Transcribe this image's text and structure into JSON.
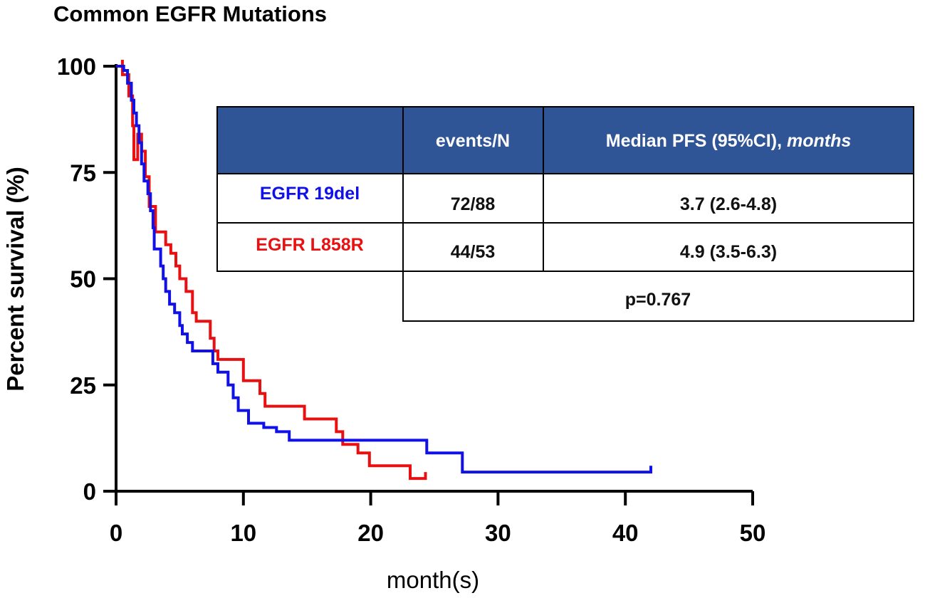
{
  "chart_data": {
    "type": "line",
    "title": "Common EGFR Mutations",
    "xlabel": "month(s)",
    "ylabel": "Percent survival (%)",
    "xlim": [
      0,
      50
    ],
    "ylim": [
      0,
      100
    ],
    "x_ticks": [
      "0",
      "10",
      "20",
      "30",
      "40",
      "50"
    ],
    "y_ticks": [
      "0",
      "25",
      "50",
      "75",
      "100"
    ],
    "series": [
      {
        "name": "EGFR 19del",
        "color": "#1010e8",
        "points": [
          [
            0,
            100
          ],
          [
            0.6,
            100
          ],
          [
            0.6,
            99
          ],
          [
            0.9,
            99
          ],
          [
            0.9,
            96
          ],
          [
            1.2,
            96
          ],
          [
            1.2,
            92
          ],
          [
            1.4,
            92
          ],
          [
            1.4,
            89
          ],
          [
            1.6,
            89
          ],
          [
            1.6,
            86
          ],
          [
            1.8,
            86
          ],
          [
            1.8,
            82
          ],
          [
            2.0,
            82
          ],
          [
            2.0,
            77
          ],
          [
            2.2,
            77
          ],
          [
            2.2,
            73
          ],
          [
            2.5,
            73
          ],
          [
            2.5,
            70
          ],
          [
            2.7,
            70
          ],
          [
            2.7,
            66
          ],
          [
            2.9,
            66
          ],
          [
            2.9,
            62
          ],
          [
            3.0,
            62
          ],
          [
            3.0,
            57
          ],
          [
            3.5,
            57
          ],
          [
            3.5,
            53
          ],
          [
            3.7,
            53
          ],
          [
            3.7,
            50
          ],
          [
            3.9,
            50
          ],
          [
            3.9,
            47
          ],
          [
            4.2,
            47
          ],
          [
            4.2,
            44
          ],
          [
            4.6,
            44
          ],
          [
            4.6,
            42
          ],
          [
            5.0,
            42
          ],
          [
            5.0,
            39
          ],
          [
            5.2,
            39
          ],
          [
            5.2,
            37
          ],
          [
            5.6,
            37
          ],
          [
            5.6,
            35
          ],
          [
            6.0,
            35
          ],
          [
            6.0,
            33
          ],
          [
            7.6,
            33
          ],
          [
            7.6,
            30
          ],
          [
            8.0,
            30
          ],
          [
            8.0,
            28
          ],
          [
            8.8,
            28
          ],
          [
            8.8,
            25
          ],
          [
            9.2,
            25
          ],
          [
            9.2,
            22
          ],
          [
            9.6,
            22
          ],
          [
            9.6,
            19
          ],
          [
            10.4,
            19
          ],
          [
            10.4,
            16
          ],
          [
            11.6,
            16
          ],
          [
            11.6,
            15
          ],
          [
            12.6,
            15
          ],
          [
            12.6,
            14
          ],
          [
            13.6,
            14
          ],
          [
            13.6,
            12
          ],
          [
            24.4,
            12
          ],
          [
            24.4,
            9
          ],
          [
            27.2,
            9
          ],
          [
            27.2,
            4.5
          ],
          [
            42.0,
            4.5
          ],
          [
            42.0,
            6
          ]
        ]
      },
      {
        "name": "EGFR L858R",
        "color": "#e81010",
        "points": [
          [
            0.5,
            101.5
          ],
          [
            0.5,
            98
          ],
          [
            1.0,
            98
          ],
          [
            1.0,
            93
          ],
          [
            1.3,
            93
          ],
          [
            1.3,
            86
          ],
          [
            1.4,
            86
          ],
          [
            1.4,
            78
          ],
          [
            1.7,
            78
          ],
          [
            1.7,
            84
          ],
          [
            2.0,
            84
          ],
          [
            2.0,
            80
          ],
          [
            2.3,
            80
          ],
          [
            2.3,
            74
          ],
          [
            2.6,
            74
          ],
          [
            2.6,
            67
          ],
          [
            3.1,
            67
          ],
          [
            3.1,
            61
          ],
          [
            3.9,
            61
          ],
          [
            3.9,
            58
          ],
          [
            4.3,
            58
          ],
          [
            4.3,
            56
          ],
          [
            4.7,
            56
          ],
          [
            4.7,
            53
          ],
          [
            5.0,
            53
          ],
          [
            5.0,
            50
          ],
          [
            5.5,
            50
          ],
          [
            5.5,
            47
          ],
          [
            6.0,
            47
          ],
          [
            6.0,
            42
          ],
          [
            6.3,
            42
          ],
          [
            6.3,
            40
          ],
          [
            7.4,
            40
          ],
          [
            7.4,
            36
          ],
          [
            7.7,
            36
          ],
          [
            7.7,
            33
          ],
          [
            8.0,
            33
          ],
          [
            8.0,
            31
          ],
          [
            10.0,
            31
          ],
          [
            10.0,
            26
          ],
          [
            11.3,
            26
          ],
          [
            11.3,
            23
          ],
          [
            11.7,
            23
          ],
          [
            11.7,
            20
          ],
          [
            14.8,
            20
          ],
          [
            14.8,
            17
          ],
          [
            17.3,
            17
          ],
          [
            17.3,
            14
          ],
          [
            17.8,
            14
          ],
          [
            17.8,
            11
          ],
          [
            19.0,
            11
          ],
          [
            19.0,
            9
          ],
          [
            19.9,
            9
          ],
          [
            19.9,
            6
          ],
          [
            23.1,
            6
          ],
          [
            23.1,
            3
          ],
          [
            24.3,
            3
          ],
          [
            24.3,
            4.5
          ]
        ]
      }
    ]
  },
  "table": {
    "header": {
      "events_n": "events/N",
      "median_prefix": "Median PFS (95%CI), ",
      "median_unit": "months"
    },
    "rows": [
      {
        "label": "EGFR 19del",
        "events": "72/88",
        "median": "3.7 (2.6-4.8)",
        "color": "#1010e8"
      },
      {
        "label": "EGFR L858R",
        "events": "44/53",
        "median": "4.9 (3.5-6.3)",
        "color": "#e81010"
      }
    ],
    "p_value": "p=0.767",
    "header_bg": "#2f5597"
  }
}
